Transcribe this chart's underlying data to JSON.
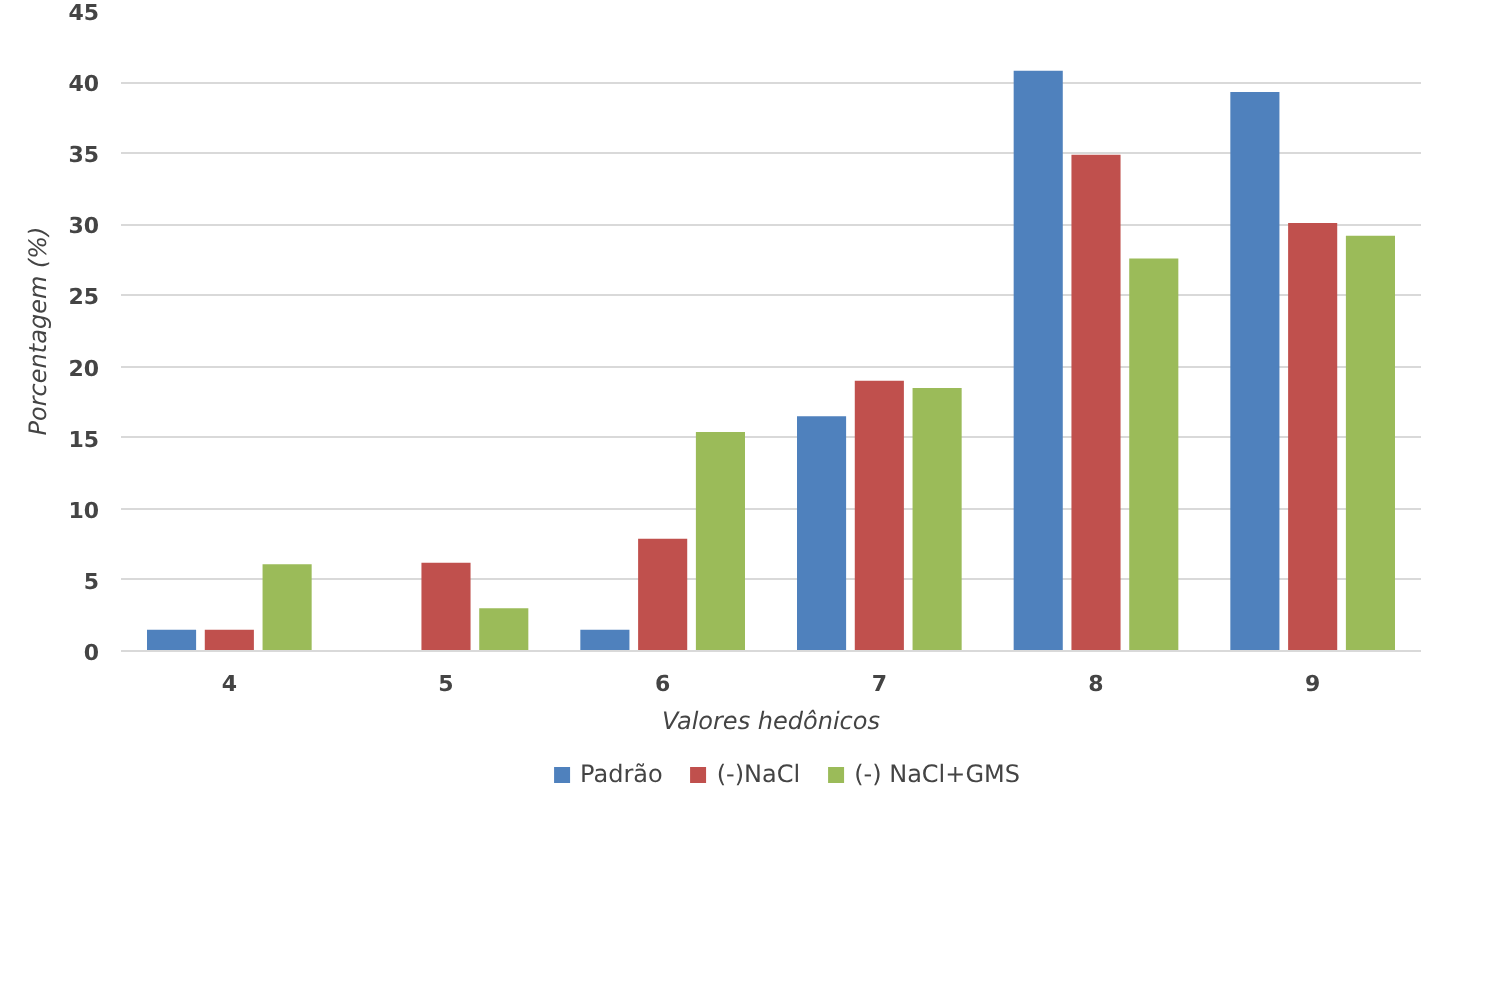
{
  "chart_data": {
    "type": "bar",
    "xlabel": "Valores hedônicos",
    "ylabel": "Porcentagem (%)",
    "categories": [
      "4",
      "5",
      "6",
      "7",
      "8",
      "9"
    ],
    "series": [
      {
        "name": "Padrão",
        "color": "#4f81bd",
        "values": [
          1.5,
          0,
          1.5,
          16.5,
          40.8,
          39.3
        ]
      },
      {
        "name": "(-)NaCl",
        "color": "#c0504d",
        "values": [
          1.5,
          6.2,
          7.9,
          19,
          34.9,
          30.1
        ]
      },
      {
        "name": "(-) NaCl+GMS",
        "color": "#9bbb59",
        "values": [
          6.1,
          3,
          15.4,
          18.5,
          27.6,
          29.2
        ]
      }
    ],
    "ylim": [
      0,
      45
    ],
    "yticks": [
      0,
      5,
      10,
      15,
      20,
      25,
      30,
      35,
      40,
      45
    ],
    "grid": "y",
    "legend": "bottom"
  }
}
